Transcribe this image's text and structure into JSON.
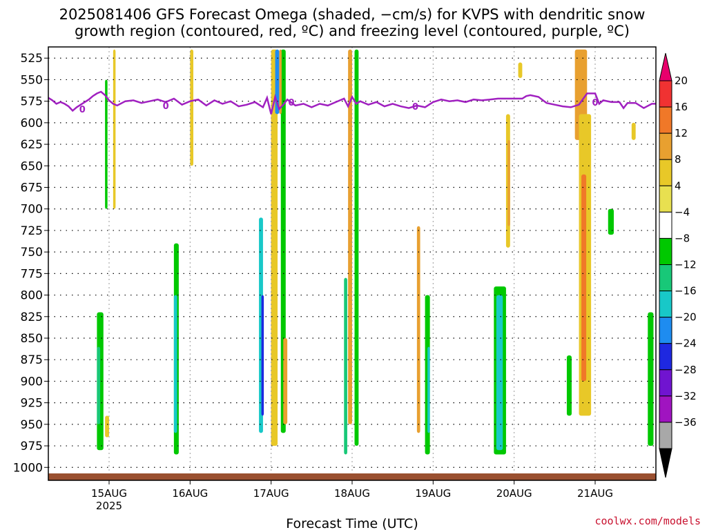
{
  "chart_data": {
    "type": "heatmap",
    "title": "2025081406 GFS Forecast Omega (shaded, −cm/s) for KVPS with dendritic snow",
    "subtitle": "growth region (contoured, red, ºC) and freezing level (contoured, purple, ºC)",
    "xlabel": "Forecast Time (UTC)",
    "ylabel": "",
    "credit": "coolwx.com/models",
    "x_range_days": [
      14.25,
      21.75
    ],
    "y_range_hpa": [
      512,
      1015
    ],
    "y_ticks": [
      525,
      550,
      575,
      600,
      625,
      650,
      675,
      700,
      725,
      750,
      775,
      800,
      825,
      850,
      875,
      900,
      925,
      950,
      975,
      1000
    ],
    "x_ticks": [
      {
        "day": 15,
        "label": "15AUG",
        "sub": "2025"
      },
      {
        "day": 16,
        "label": "16AUG",
        "sub": ""
      },
      {
        "day": 17,
        "label": "17AUG",
        "sub": ""
      },
      {
        "day": 18,
        "label": "18AUG",
        "sub": ""
      },
      {
        "day": 19,
        "label": "19AUG",
        "sub": ""
      },
      {
        "day": 20,
        "label": "20AUG",
        "sub": ""
      },
      {
        "day": 21,
        "label": "21AUG",
        "sub": ""
      }
    ],
    "grid": true,
    "colorbar": {
      "position": "right",
      "labels": [
        "20",
        "16",
        "12",
        "8",
        "4",
        "−4",
        "−8",
        "−12",
        "−16",
        "−20",
        "−24",
        "−28",
        "−32",
        "−36"
      ],
      "colors": [
        "#e8006c",
        "#f03232",
        "#f07828",
        "#e8a030",
        "#e8c828",
        "#e8e050",
        "#ffffff",
        "#00c800",
        "#18c878",
        "#18c8c8",
        "#1e8cf0",
        "#1e28e0",
        "#7014d0",
        "#a014c0",
        "#a8a8a8",
        "#000000"
      ]
    },
    "freezing_level": {
      "label": "0",
      "color": "#a020c0",
      "points": [
        [
          14.25,
          571
        ],
        [
          14.3,
          574
        ],
        [
          14.35,
          578
        ],
        [
          14.4,
          576
        ],
        [
          14.45,
          578
        ],
        [
          14.5,
          581
        ],
        [
          14.55,
          586
        ],
        [
          14.6,
          582
        ],
        [
          14.65,
          579
        ],
        [
          14.7,
          576
        ],
        [
          14.75,
          573
        ],
        [
          14.8,
          569
        ],
        [
          14.85,
          566
        ],
        [
          14.9,
          564
        ],
        [
          14.95,
          568
        ],
        [
          15.0,
          574
        ],
        [
          15.05,
          578
        ],
        [
          15.1,
          580
        ],
        [
          15.2,
          575
        ],
        [
          15.3,
          574
        ],
        [
          15.4,
          577
        ],
        [
          15.5,
          575
        ],
        [
          15.6,
          573
        ],
        [
          15.7,
          576
        ],
        [
          15.8,
          572
        ],
        [
          15.9,
          579
        ],
        [
          16.0,
          575
        ],
        [
          16.1,
          573
        ],
        [
          16.2,
          580
        ],
        [
          16.3,
          574
        ],
        [
          16.4,
          578
        ],
        [
          16.5,
          575
        ],
        [
          16.6,
          581
        ],
        [
          16.7,
          579
        ],
        [
          16.8,
          576
        ],
        [
          16.9,
          582
        ],
        [
          16.95,
          571
        ],
        [
          17.0,
          590
        ],
        [
          17.05,
          570
        ],
        [
          17.1,
          584
        ],
        [
          17.15,
          579
        ],
        [
          17.2,
          573
        ],
        [
          17.3,
          580
        ],
        [
          17.4,
          578
        ],
        [
          17.5,
          582
        ],
        [
          17.6,
          578
        ],
        [
          17.7,
          580
        ],
        [
          17.8,
          576
        ],
        [
          17.9,
          572
        ],
        [
          17.95,
          581
        ],
        [
          18.0,
          570
        ],
        [
          18.05,
          578
        ],
        [
          18.1,
          575
        ],
        [
          18.2,
          579
        ],
        [
          18.3,
          576
        ],
        [
          18.4,
          581
        ],
        [
          18.5,
          578
        ],
        [
          18.6,
          581
        ],
        [
          18.7,
          583
        ],
        [
          18.8,
          580
        ],
        [
          18.9,
          582
        ],
        [
          19.0,
          576
        ],
        [
          19.1,
          573
        ],
        [
          19.2,
          575
        ],
        [
          19.3,
          574
        ],
        [
          19.4,
          576
        ],
        [
          19.5,
          573
        ],
        [
          19.6,
          574
        ],
        [
          19.7,
          573
        ],
        [
          19.8,
          572
        ],
        [
          20.0,
          572
        ],
        [
          20.1,
          572
        ],
        [
          20.15,
          569
        ],
        [
          20.2,
          568
        ],
        [
          20.3,
          570
        ],
        [
          20.4,
          577
        ],
        [
          20.5,
          579
        ],
        [
          20.6,
          581
        ],
        [
          20.7,
          582
        ],
        [
          20.8,
          579
        ],
        [
          20.9,
          566
        ],
        [
          21.0,
          566
        ],
        [
          21.05,
          578
        ],
        [
          21.1,
          574
        ],
        [
          21.2,
          576
        ],
        [
          21.3,
          576
        ],
        [
          21.35,
          583
        ],
        [
          21.4,
          577
        ],
        [
          21.5,
          577
        ],
        [
          21.6,
          583
        ],
        [
          21.7,
          578
        ],
        [
          21.75,
          578
        ]
      ],
      "label_positions": [
        [
          14.67,
          584
        ],
        [
          15.7,
          580
        ],
        [
          17.25,
          576
        ],
        [
          18.78,
          581
        ],
        [
          21.0,
          576
        ]
      ]
    },
    "shaded_regions": [
      {
        "x": 17.0,
        "w": 0.05,
        "y0": 575,
        "y1": 975,
        "color": "#f03232"
      },
      {
        "x": 17.0,
        "w": 0.08,
        "y0": 515,
        "y1": 975,
        "color": "#e8c828"
      },
      {
        "x": 17.12,
        "w": 0.06,
        "y0": 515,
        "y1": 960,
        "color": "#00c800"
      },
      {
        "x": 16.85,
        "w": 0.05,
        "y0": 710,
        "y1": 960,
        "color": "#18c8c8"
      },
      {
        "x": 16.88,
        "w": 0.03,
        "y0": 800,
        "y1": 940,
        "color": "#1e28e0"
      },
      {
        "x": 17.95,
        "w": 0.05,
        "y0": 515,
        "y1": 950,
        "color": "#e8a030"
      },
      {
        "x": 18.03,
        "w": 0.05,
        "y0": 515,
        "y1": 975,
        "color": "#00c800"
      },
      {
        "x": 17.9,
        "w": 0.04,
        "y0": 780,
        "y1": 985,
        "color": "#18c878"
      },
      {
        "x": 14.85,
        "w": 0.08,
        "y0": 820,
        "y1": 980,
        "color": "#00c800"
      },
      {
        "x": 14.85,
        "w": 0.04,
        "y0": 860,
        "y1": 950,
        "color": "#18c878"
      },
      {
        "x": 15.8,
        "w": 0.06,
        "y0": 740,
        "y1": 985,
        "color": "#00c800"
      },
      {
        "x": 15.8,
        "w": 0.04,
        "y0": 800,
        "y1": 960,
        "color": "#18c8c8"
      },
      {
        "x": 16.0,
        "w": 0.04,
        "y0": 515,
        "y1": 650,
        "color": "#e8c828"
      },
      {
        "x": 18.9,
        "w": 0.06,
        "y0": 800,
        "y1": 985,
        "color": "#00c800"
      },
      {
        "x": 18.93,
        "w": 0.03,
        "y0": 860,
        "y1": 960,
        "color": "#18c8c8"
      },
      {
        "x": 18.8,
        "w": 0.04,
        "y0": 720,
        "y1": 960,
        "color": "#e8a030"
      },
      {
        "x": 19.75,
        "w": 0.15,
        "y0": 790,
        "y1": 985,
        "color": "#00c800"
      },
      {
        "x": 19.78,
        "w": 0.08,
        "y0": 800,
        "y1": 980,
        "color": "#18c8c8"
      },
      {
        "x": 19.9,
        "w": 0.05,
        "y0": 590,
        "y1": 745,
        "color": "#e8c828"
      },
      {
        "x": 19.92,
        "w": 0.03,
        "y0": 620,
        "y1": 720,
        "color": "#e8a030"
      },
      {
        "x": 20.75,
        "w": 0.15,
        "y0": 515,
        "y1": 620,
        "color": "#e8a030"
      },
      {
        "x": 20.8,
        "w": 0.15,
        "y0": 590,
        "y1": 940,
        "color": "#e8c828"
      },
      {
        "x": 20.83,
        "w": 0.06,
        "y0": 660,
        "y1": 900,
        "color": "#f07828"
      },
      {
        "x": 20.65,
        "w": 0.06,
        "y0": 870,
        "y1": 940,
        "color": "#00c800"
      },
      {
        "x": 21.16,
        "w": 0.07,
        "y0": 700,
        "y1": 730,
        "color": "#00c800"
      },
      {
        "x": 21.65,
        "w": 0.07,
        "y0": 820,
        "y1": 975,
        "color": "#00c800"
      },
      {
        "x": 20.05,
        "w": 0.05,
        "y0": 530,
        "y1": 548,
        "color": "#e8c828"
      },
      {
        "x": 21.45,
        "w": 0.05,
        "y0": 600,
        "y1": 620,
        "color": "#e8c828"
      },
      {
        "x": 17.05,
        "w": 0.05,
        "y0": 515,
        "y1": 590,
        "color": "#1e8cf0"
      },
      {
        "x": 17.1,
        "w": 0.03,
        "y0": 515,
        "y1": 590,
        "color": "#e8a030"
      },
      {
        "x": 17.15,
        "w": 0.05,
        "y0": 850,
        "y1": 950,
        "color": "#e8a030"
      },
      {
        "x": 14.95,
        "w": 0.03,
        "y0": 550,
        "y1": 700,
        "color": "#00c800"
      },
      {
        "x": 15.05,
        "w": 0.03,
        "y0": 515,
        "y1": 700,
        "color": "#e8c828"
      },
      {
        "x": 14.95,
        "w": 0.05,
        "y0": 940,
        "y1": 965,
        "color": "#e8c828"
      }
    ]
  }
}
